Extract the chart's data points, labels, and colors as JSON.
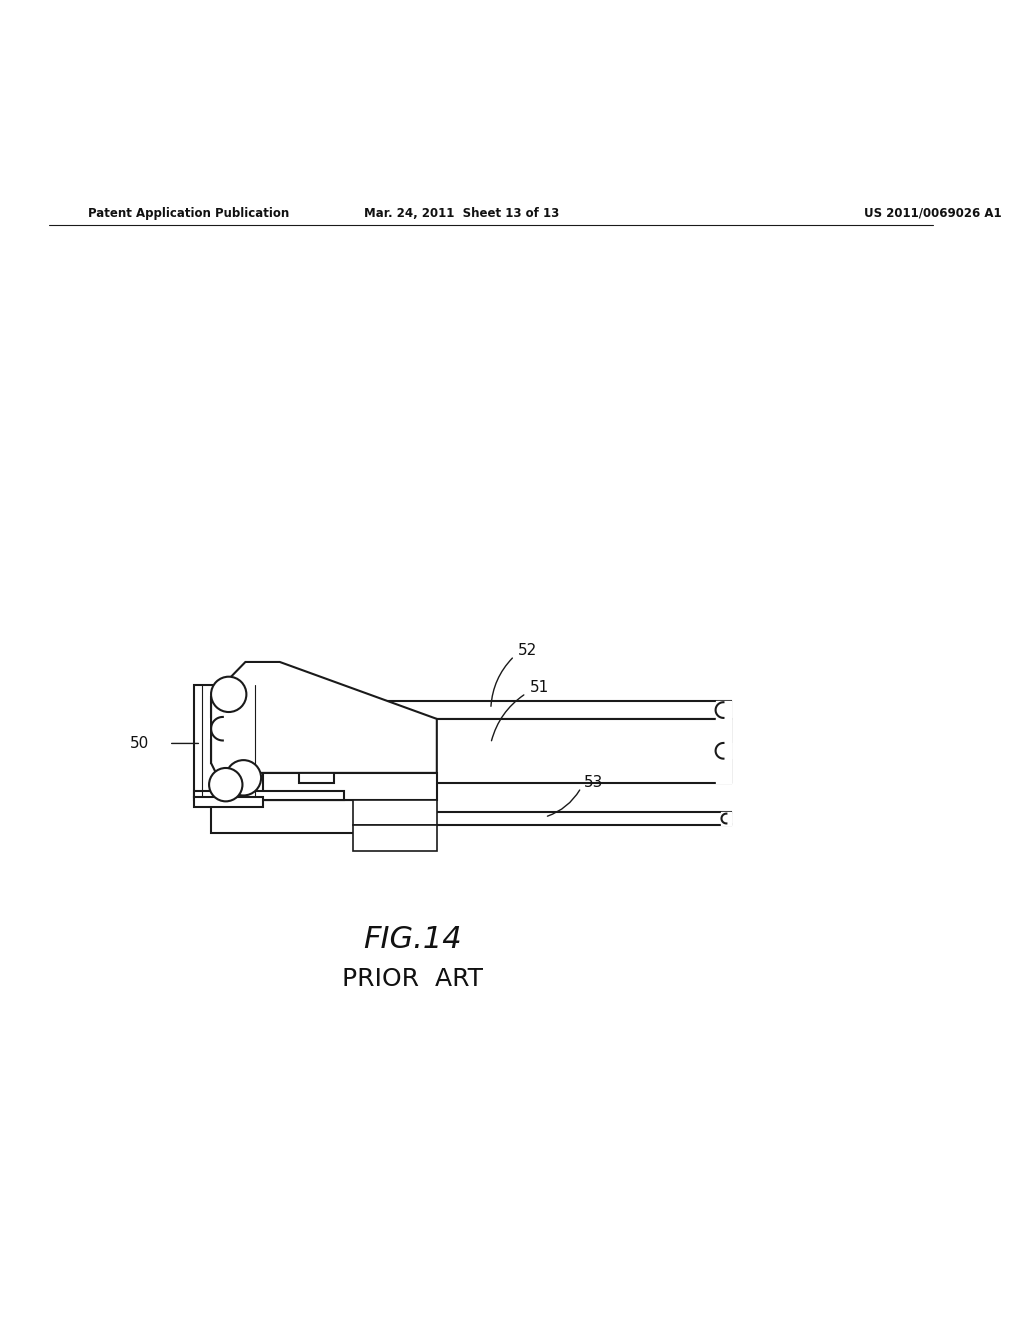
{
  "bg_color": "#ffffff",
  "line_color": "#1a1a1a",
  "line_width": 1.5,
  "header_left": "Patent Application Publication",
  "header_mid": "Mar. 24, 2011  Sheet 13 of 13",
  "header_right": "US 2011/0069026 A1",
  "fig_label": "FIG.14",
  "fig_sublabel": "PRIOR  ART"
}
